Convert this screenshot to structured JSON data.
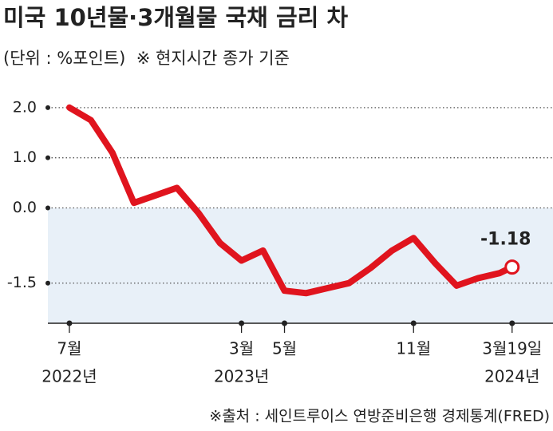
{
  "chart_data": {
    "type": "line",
    "title": "미국 10년물·3개월물 국채 금리 차",
    "subtitle": "(단위 : %포인트)  ※ 현지시간 종가 기준",
    "source": "※출처 : 세인트루이스 연방준비은행 경제통계(FRED)",
    "x": [
      "2022-07",
      "2022-08",
      "2022-09",
      "2022-10",
      "2022-11",
      "2022-12",
      "2023-01",
      "2023-02",
      "2023-03",
      "2023-04",
      "2023-05",
      "2023-06",
      "2023-07",
      "2023-08",
      "2023-09",
      "2023-10",
      "2023-11",
      "2023-12",
      "2024-01",
      "2024-02",
      "2024-03",
      "2024-03-19"
    ],
    "series": [
      {
        "name": "10년물·3개월물 금리 차",
        "color": "#e0141e",
        "values": [
          2.0,
          1.75,
          1.1,
          0.1,
          0.25,
          0.4,
          -0.1,
          -0.7,
          -1.05,
          -0.85,
          -1.65,
          -1.7,
          -1.6,
          -1.5,
          -1.2,
          -0.85,
          -0.6,
          -1.1,
          -1.55,
          -1.4,
          -1.3,
          -1.18
        ]
      }
    ],
    "ylim": [
      -2.3,
      2.3
    ],
    "yticks": [
      {
        "value": 2.0,
        "label": "2.0"
      },
      {
        "value": 1.0,
        "label": "1.0"
      },
      {
        "value": 0.0,
        "label": "0.0"
      },
      -1.5
    ],
    "xlim": [
      "2022-06",
      "2024-05"
    ],
    "xticks": [
      {
        "value": "2022-07",
        "label": "7월",
        "year": "2022년"
      },
      {
        "value": "2023-03",
        "label": "3월",
        "year": "2023년"
      },
      {
        "value": "2023-05",
        "label": "5월"
      },
      {
        "value": "2023-11",
        "label": "11월"
      },
      {
        "value": "2024-03-19",
        "label": "3월19일",
        "year": "2024년"
      }
    ],
    "grid": true,
    "negative_fill": "#e8f0f8"
  }
}
